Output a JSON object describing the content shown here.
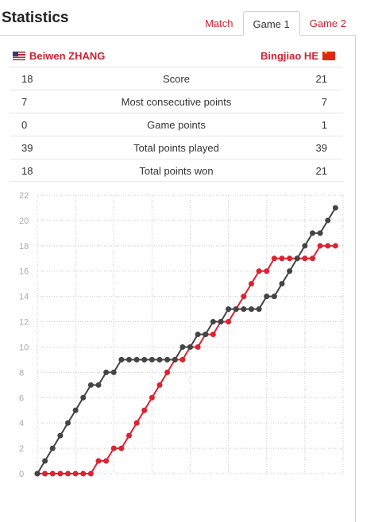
{
  "header": {
    "title": "Statistics"
  },
  "tabs": [
    {
      "label": "Match",
      "active": false
    },
    {
      "label": "Game 1",
      "active": true
    },
    {
      "label": "Game 2",
      "active": false
    }
  ],
  "players": {
    "left": {
      "name": "Beiwen ZHANG",
      "flag": "us-flag-icon"
    },
    "right": {
      "name": "Bingjiao HE",
      "flag": "china-flag-icon"
    }
  },
  "stats": [
    {
      "left": "18",
      "label": "Score",
      "right": "21"
    },
    {
      "left": "7",
      "label": "Most consecutive points",
      "right": "7"
    },
    {
      "left": "0",
      "label": "Game points",
      "right": "1"
    },
    {
      "left": "39",
      "label": "Total points played",
      "right": "39"
    },
    {
      "left": "18",
      "label": "Total points won",
      "right": "21"
    }
  ],
  "colors": {
    "accent": "#cc2233",
    "left_series": "#dd2230",
    "right_series": "#444444"
  },
  "chart_data": {
    "type": "line",
    "x": [
      0,
      1,
      2,
      3,
      4,
      5,
      6,
      7,
      8,
      9,
      10,
      11,
      12,
      13,
      14,
      15,
      16,
      17,
      18,
      19,
      20,
      21,
      22,
      23,
      24,
      25,
      26,
      27,
      28,
      29,
      30,
      31,
      32,
      33,
      34,
      35,
      36,
      37,
      38,
      39
    ],
    "series": [
      {
        "name": "Beiwen ZHANG",
        "color": "#dd2230",
        "values": [
          0,
          0,
          0,
          0,
          0,
          0,
          0,
          0,
          1,
          1,
          2,
          2,
          3,
          4,
          5,
          6,
          7,
          8,
          9,
          9,
          10,
          10,
          11,
          11,
          12,
          12,
          13,
          14,
          15,
          16,
          16,
          17,
          17,
          17,
          17,
          17,
          17,
          18,
          18,
          18
        ]
      },
      {
        "name": "Bingjiao HE",
        "color": "#444444",
        "values": [
          0,
          1,
          2,
          3,
          4,
          5,
          6,
          7,
          7,
          8,
          8,
          9,
          9,
          9,
          9,
          9,
          9,
          9,
          9,
          10,
          10,
          11,
          11,
          12,
          12,
          13,
          13,
          13,
          13,
          13,
          14,
          14,
          15,
          16,
          17,
          18,
          19,
          19,
          20,
          21
        ]
      }
    ],
    "yticks": [
      "0",
      "2",
      "4",
      "6",
      "8",
      "10",
      "12",
      "14",
      "16",
      "18",
      "20",
      "22"
    ],
    "ylim": [
      0,
      22
    ],
    "xlim": [
      0,
      40
    ],
    "grid": true
  }
}
